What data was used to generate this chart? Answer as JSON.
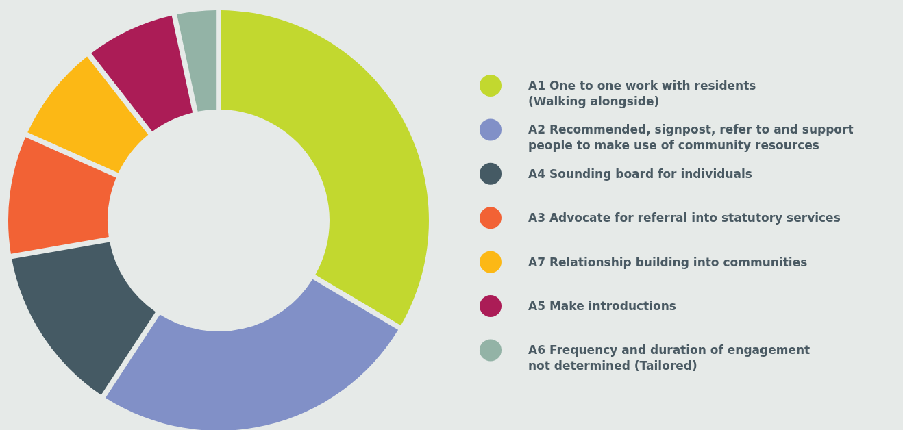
{
  "chart_data": {
    "type": "donut",
    "categories": [
      "A1 One to one work with residents\n(Walking alongside)",
      "A2 Recommended, signpost, refer to and support\npeople to make use of community resources",
      "A4 Sounding board for individuals",
      "A3 Advocate for referral into statutory services",
      "A7 Relationship building into communities",
      "A5 Make introductions",
      "A6 Frequency and duration of engagement\nnot determined (Tailored)"
    ],
    "values": [
      34,
      26,
      13,
      9.3,
      7.6,
      7,
      3.1
    ],
    "colors": [
      "#c2d82f",
      "#8190c7",
      "#455a64",
      "#f26235",
      "#fcb815",
      "#ab1c56",
      "#93b3a6"
    ],
    "legend": "right"
  }
}
